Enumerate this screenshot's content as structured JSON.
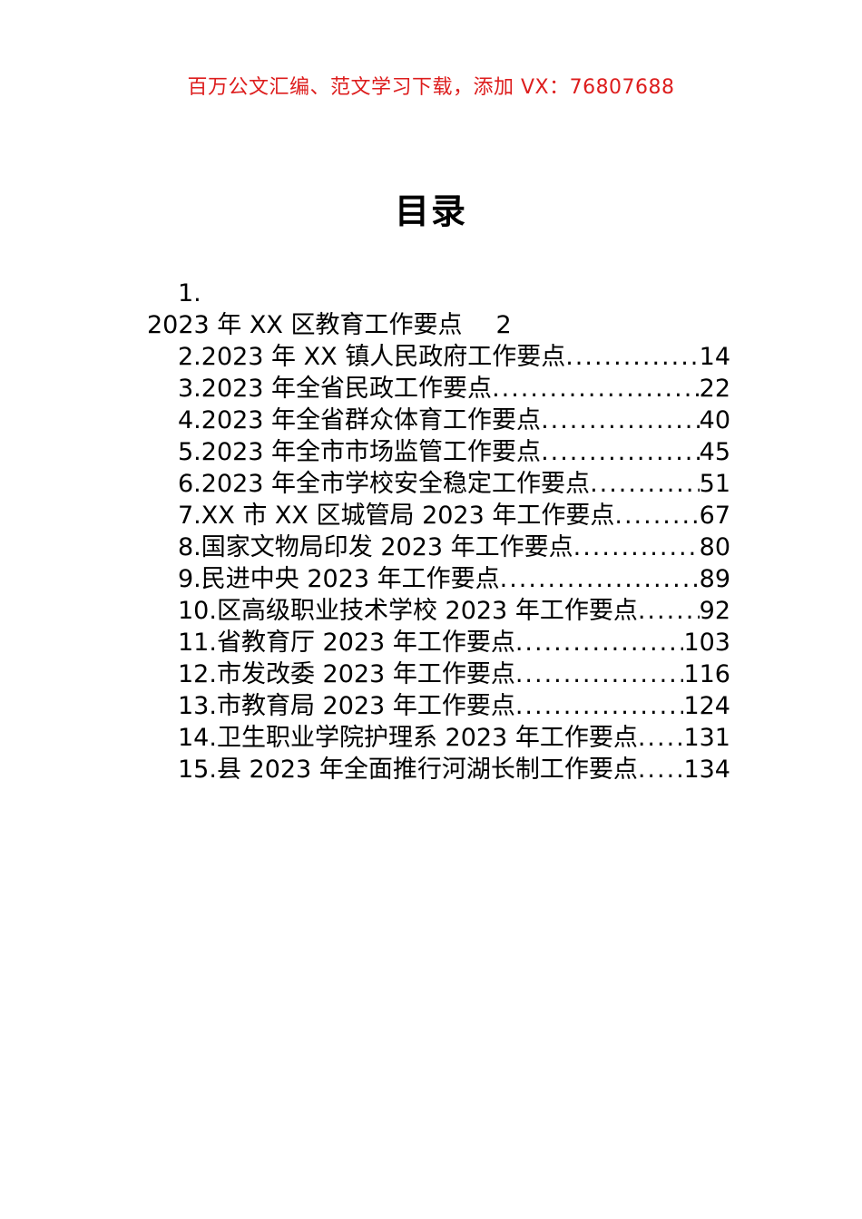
{
  "header": {
    "notice": "百万公文汇编、范文学习下载，添加 VX：76807688",
    "notice_color": "#dd1d1d"
  },
  "document": {
    "title": "目录"
  },
  "toc": {
    "item1_number": "1.",
    "item1_title": "2023 年 XX 区教育工作要点",
    "item1_page": "2",
    "entries": [
      {
        "title": "2.2023 年 XX 镇人民政府工作要点",
        "page": "14"
      },
      {
        "title": "3.2023 年全省民政工作要点",
        "page": "22"
      },
      {
        "title": "4.2023 年全省群众体育工作要点",
        "page": "40"
      },
      {
        "title": "5.2023 年全市市场监管工作要点",
        "page": "45"
      },
      {
        "title": "6.2023 年全市学校安全稳定工作要点",
        "page": "51"
      },
      {
        "title": "7.XX 市 XX 区城管局 2023 年工作要点",
        "page": "67"
      },
      {
        "title": "8.国家文物局印发 2023 年工作要点",
        "page": "80"
      },
      {
        "title": "9.民进中央 2023 年工作要点",
        "page": "89"
      },
      {
        "title": "10.区高级职业技术学校 2023 年工作要点",
        "page": "92"
      },
      {
        "title": "11.省教育厅 2023 年工作要点",
        "page": "103"
      },
      {
        "title": "12.市发改委 2023 年工作要点",
        "page": "116"
      },
      {
        "title": "13.市教育局 2023 年工作要点",
        "page": "124"
      },
      {
        "title": "14.卫生职业学院护理系 2023 年工作要点",
        "page": "131"
      },
      {
        "title": "15.县 2023 年全面推行河湖长制工作要点",
        "page": "134"
      }
    ]
  }
}
